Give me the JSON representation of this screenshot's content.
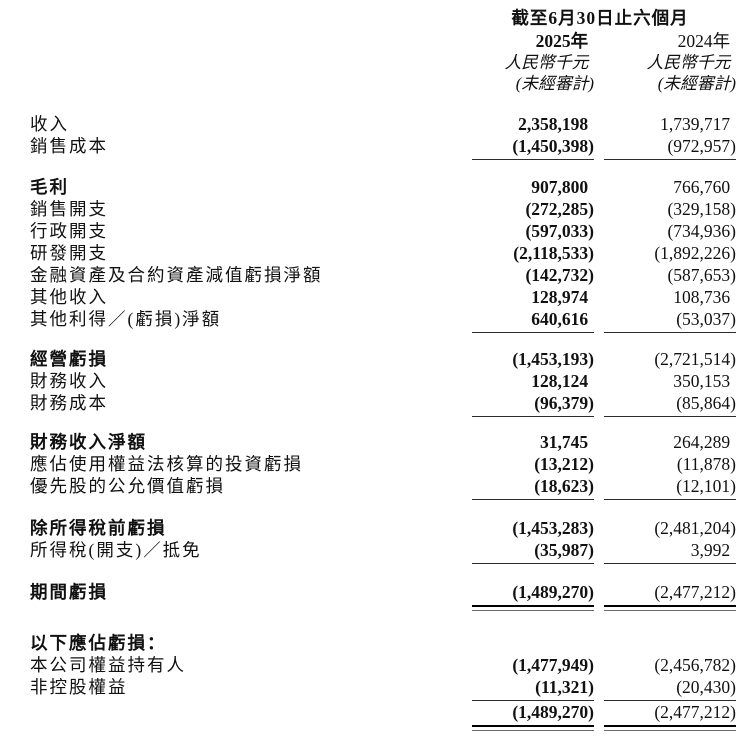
{
  "header": {
    "period_title": "截至6月30日止六個月",
    "col2025": {
      "year": "2025年",
      "currency": "人民幣千元",
      "audit": "(未經審計)"
    },
    "col2024": {
      "year": "2024年",
      "currency": "人民幣千元",
      "audit": "(未經審計)"
    }
  },
  "rows": [
    {
      "label": "收入",
      "v2025": "2,358,198",
      "v2024": "1,739,717"
    },
    {
      "label": "銷售成本",
      "v2025": "(1,450,398)",
      "v2024": "(972,957)"
    },
    {
      "label": "毛利",
      "v2025": "907,800",
      "v2024": "766,760"
    },
    {
      "label": "銷售開支",
      "v2025": "(272,285)",
      "v2024": "(329,158)"
    },
    {
      "label": "行政開支",
      "v2025": "(597,033)",
      "v2024": "(734,936)"
    },
    {
      "label": "研發開支",
      "v2025": "(2,118,533)",
      "v2024": "(1,892,226)"
    },
    {
      "label": "金融資產及合約資產減值虧損淨額",
      "v2025": "(142,732)",
      "v2024": "(587,653)"
    },
    {
      "label": "其他收入",
      "v2025": "128,974",
      "v2024": "108,736"
    },
    {
      "label": "其他利得／(虧損)淨額",
      "v2025": "640,616",
      "v2024": "(53,037)"
    },
    {
      "label": "經營虧損",
      "v2025": "(1,453,193)",
      "v2024": "(2,721,514)"
    },
    {
      "label": "財務收入",
      "v2025": "128,124",
      "v2024": "350,153"
    },
    {
      "label": "財務成本",
      "v2025": "(96,379)",
      "v2024": "(85,864)"
    },
    {
      "label": "財務收入淨額",
      "v2025": "31,745",
      "v2024": "264,289"
    },
    {
      "label": "應佔使用權益法核算的投資虧損",
      "v2025": "(13,212)",
      "v2024": "(11,878)"
    },
    {
      "label": "優先股的公允價值虧損",
      "v2025": "(18,623)",
      "v2024": "(12,101)"
    },
    {
      "label": "除所得稅前虧損",
      "v2025": "(1,453,283)",
      "v2024": "(2,481,204)"
    },
    {
      "label": "所得稅(開支)／抵免",
      "v2025": "(35,987)",
      "v2024": "3,992"
    },
    {
      "label": "期間虧損",
      "v2025": "(1,489,270)",
      "v2024": "(2,477,212)"
    },
    {
      "label": "以下應佔虧損："
    },
    {
      "label": "本公司權益持有人",
      "v2025": "(1,477,949)",
      "v2024": "(2,456,782)"
    },
    {
      "label": "非控股權益",
      "v2025": "(11,321)",
      "v2024": "(20,430)"
    },
    {
      "label": "",
      "v2025": "(1,489,270)",
      "v2024": "(2,477,212)"
    }
  ]
}
